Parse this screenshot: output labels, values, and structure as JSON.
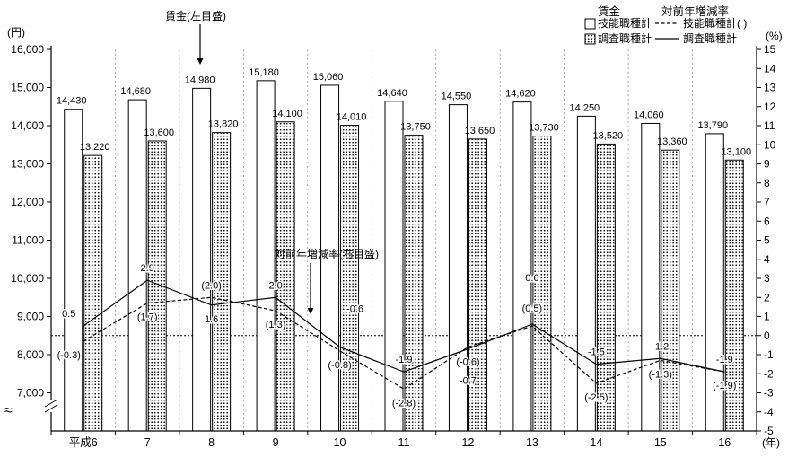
{
  "chart_data": {
    "type": "bar",
    "subtype": "grouped-bar-and-line-combo",
    "categories": [
      "平成6",
      "7",
      "8",
      "9",
      "10",
      "11",
      "12",
      "13",
      "14",
      "15",
      "16"
    ],
    "x_unit_label": "(年)",
    "left_axis": {
      "title": "(円)",
      "min": 7000,
      "max": 16000,
      "tick_step": 1000,
      "tick_labels": [
        "16,000",
        "15,000",
        "14,000",
        "13,000",
        "12,000",
        "11,000",
        "10,000",
        "9,000",
        "8,000",
        "7,000"
      ],
      "broken_axis": true
    },
    "right_axis": {
      "title": "(%)",
      "min": -5,
      "max": 15,
      "tick_step": 1
    },
    "bar_series": [
      {
        "name": "技能職種計",
        "fill": "open",
        "values": [
          14430,
          14680,
          14980,
          15180,
          15060,
          14640,
          14550,
          14620,
          14250,
          14060,
          13790
        ],
        "value_labels": [
          "14,430",
          "14,680",
          "14,980",
          "15,180",
          "15,060",
          "14,640",
          "14,550",
          "14,620",
          "14,250",
          "14,060",
          "13,790"
        ]
      },
      {
        "name": "調査職種計",
        "fill": "dotted",
        "values": [
          13220,
          13600,
          13820,
          14100,
          14010,
          13750,
          13650,
          13730,
          13520,
          13360,
          13100
        ],
        "value_labels": [
          "13,220",
          "13,600",
          "13,820",
          "14,100",
          "14,010",
          "13,750",
          "13,650",
          "13,730",
          "13,520",
          "13,360",
          "13,100"
        ]
      }
    ],
    "line_series": [
      {
        "name": "技能職種計( )",
        "stroke": "dashed",
        "values": [
          -0.3,
          1.7,
          2.0,
          1.3,
          -0.8,
          -2.8,
          -0.6,
          0.5,
          -2.5,
          -1.3,
          -1.9
        ],
        "point_labels": [
          "(-0.3)",
          "(1.7)",
          "(2.0)",
          "(1.3)",
          "(-0.8)",
          "(-2.8)",
          "(-0.6)",
          "(0.5)",
          "(-2.5)",
          "(-1.3)",
          "(-1.9)"
        ]
      },
      {
        "name": "調査職種計",
        "stroke": "solid",
        "values": [
          0.5,
          2.9,
          1.6,
          2.0,
          -0.6,
          -1.9,
          -0.7,
          0.6,
          -1.5,
          -1.2,
          -1.9
        ],
        "point_labels": [
          "0.5",
          "2.9",
          "1.6",
          "2.0",
          "-0.6",
          "-1.9",
          "-0.7",
          "0.6",
          "-1.5",
          "-1.2",
          "-1.9"
        ]
      }
    ],
    "legend": {
      "bar_column_header": "賃金",
      "line_column_header": "対前年増減率",
      "bar_items": [
        "技能職種計",
        "調査職種計"
      ],
      "line_items": [
        "技能職種計( )",
        "調査職種計"
      ]
    },
    "annotations": [
      {
        "text": "賃金(左目盛)"
      },
      {
        "text": "対前年増減率(右目盛)"
      }
    ],
    "zero_reference_line": 0,
    "yen_per_percent": 500,
    "yen_at_zero_percent": 8500,
    "colors": {
      "foreground": "#000000",
      "background": "#ffffff",
      "grid": "#888888"
    }
  }
}
